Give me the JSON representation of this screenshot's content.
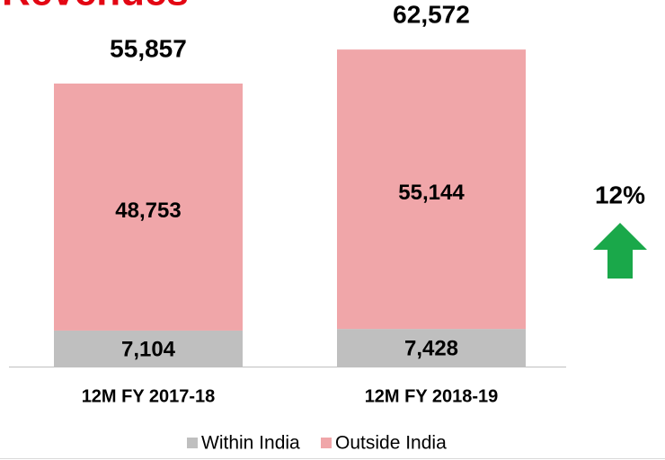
{
  "chart_data": {
    "type": "stacked_bar",
    "title": "Revenues",
    "categories": [
      "12M FY 2017-18",
      "12M FY 2018-19"
    ],
    "series": [
      {
        "name": "Within India",
        "color": "#bfbfbf",
        "values": [
          7104,
          7428
        ],
        "value_labels": [
          "7,104",
          "7,428"
        ]
      },
      {
        "name": "Outside India",
        "color": "#f0a6a9",
        "values": [
          48753,
          55144
        ],
        "value_labels": [
          "48,753",
          "55,144"
        ]
      }
    ],
    "totals": [
      55857,
      62572
    ],
    "total_labels": [
      "55,857",
      "62,572"
    ],
    "annotation": "12%",
    "arrow_color": "#1aa84a",
    "title_color": "#e30613",
    "legend": "bottom"
  }
}
